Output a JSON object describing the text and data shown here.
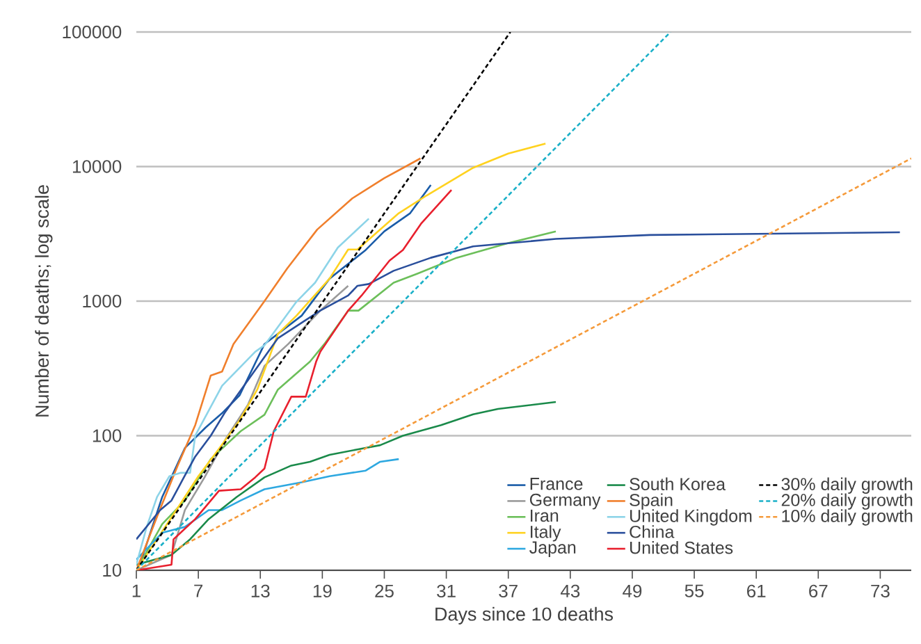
{
  "chart_data": {
    "type": "line",
    "xlabel": "Days since 10 deaths",
    "ylabel": "Number of deaths; log scale",
    "xlim": [
      1,
      76
    ],
    "ylim": [
      10,
      100000
    ],
    "log": "y",
    "grid": "y",
    "legend": "bottom right",
    "xticks": [
      1,
      7,
      13,
      19,
      25,
      31,
      37,
      43,
      49,
      55,
      61,
      67,
      73
    ],
    "yticks": [
      10,
      100,
      1000,
      10000,
      100000
    ],
    "series": [
      {
        "name": "France",
        "color": "#1a5ca8",
        "x": [
          1,
          1.5,
          3.5,
          5.7,
          7.7,
          9.3,
          11,
          13.4,
          17,
          19.7,
          23.2,
          25,
          27.5,
          29.5
        ],
        "values": [
          10,
          12,
          35,
          81,
          115,
          147,
          200,
          480,
          780,
          1470,
          2400,
          3300,
          4500,
          7300
        ]
      },
      {
        "name": "Germany",
        "color": "#9a9a9a",
        "x": [
          1,
          4.4,
          5.7,
          7.6,
          9.7,
          11.8,
          13.4,
          15.7,
          18.8,
          21.5
        ],
        "values": [
          10,
          13,
          28,
          49,
          96,
          170,
          330,
          480,
          850,
          1300
        ]
      },
      {
        "name": "Iran",
        "color": "#6cbf5a",
        "x": [
          1,
          3.5,
          5.7,
          8.2,
          11.1,
          13.4,
          14.7,
          17.8,
          19.2,
          21.5,
          22.5,
          25.9,
          28.2,
          32,
          37,
          41.6
        ],
        "values": [
          10,
          22,
          33,
          67,
          108,
          143,
          220,
          355,
          480,
          850,
          850,
          1370,
          1600,
          2100,
          2700,
          3300
        ]
      },
      {
        "name": "Italy",
        "color": "#ffd21f",
        "x": [
          1,
          3,
          5,
          7,
          9,
          11,
          12.7,
          14.7,
          16.5,
          19.7,
          21.5,
          22.4,
          26.4,
          29.1,
          33.6,
          37,
          40.6
        ],
        "values": [
          10,
          17,
          29,
          50,
          80,
          130,
          220,
          570,
          780,
          1470,
          2420,
          2420,
          4500,
          6100,
          9800,
          12500,
          14800
        ]
      },
      {
        "name": "Japan",
        "color": "#2ea8e0",
        "x": [
          1,
          3.5,
          5.7,
          8,
          9.3,
          11.1,
          13.4,
          17,
          19.7,
          23.2,
          24.6,
          26.4
        ],
        "values": [
          12,
          19,
          21,
          28,
          28,
          33,
          40,
          45,
          50,
          55,
          64,
          67
        ]
      },
      {
        "name": "South Korea",
        "color": "#1a8a4a",
        "x": [
          1,
          4.4,
          6.2,
          8,
          10.7,
          13.4,
          16,
          17.8,
          19.7,
          22.4,
          24.6,
          26.8,
          30.5,
          33.6,
          36,
          41.6
        ],
        "values": [
          11,
          13,
          17,
          24,
          35,
          49,
          60,
          64,
          72,
          79,
          85,
          100,
          120,
          144,
          158,
          178
        ]
      },
      {
        "name": "Spain",
        "color": "#f07f2c",
        "x": [
          1,
          3,
          5,
          6.7,
          8.2,
          9.3,
          10.4,
          13.4,
          15.6,
          18.5,
          21.9,
          25,
          28.5
        ],
        "values": [
          10,
          25,
          60,
          120,
          280,
          300,
          480,
          1000,
          1750,
          3400,
          5800,
          8200,
          11500
        ]
      },
      {
        "name": "United Kingdom",
        "color": "#8dd4e8",
        "x": [
          1,
          2,
          3,
          4.2,
          5.3,
          6.2,
          6.7,
          9.3,
          12.5,
          13.4,
          16.5,
          18.3,
          20.5,
          23.5
        ],
        "values": [
          11,
          21,
          35,
          50,
          53,
          53,
          100,
          235,
          420,
          470,
          990,
          1370,
          2500,
          4100
        ]
      },
      {
        "name": "China",
        "color": "#2a4f9c",
        "x": [
          1,
          3.3,
          4.4,
          5.6,
          6.7,
          8.2,
          9.6,
          14.7,
          18.8,
          21.5,
          22.4,
          23.5,
          25.9,
          29.5,
          33.6,
          41.6,
          50.7,
          59.5,
          74.9
        ],
        "values": [
          17,
          28,
          33,
          49,
          70,
          100,
          150,
          530,
          850,
          1100,
          1300,
          1340,
          1680,
          2100,
          2550,
          2900,
          3100,
          3150,
          3250
        ]
      },
      {
        "name": "United States",
        "color": "#e8202e",
        "x": [
          1,
          4.4,
          4.6,
          6.7,
          9,
          11.1,
          12.5,
          13.4,
          14.3,
          16,
          17.4,
          18.4,
          18.8,
          21.5,
          22.8,
          25.5,
          26.8,
          28.6,
          31.5
        ],
        "values": [
          10,
          11,
          17,
          24,
          39,
          40,
          49,
          57,
          108,
          195,
          195,
          355,
          420,
          850,
          1100,
          2000,
          2400,
          3800,
          6700
        ]
      },
      {
        "name": "30% daily growth",
        "color": "#000000",
        "line_style": "dashed",
        "x": [
          1,
          37.2
        ],
        "values": [
          10,
          100000
        ]
      },
      {
        "name": "20% daily growth",
        "color": "#1ab0c8",
        "line_style": "dashed",
        "x": [
          1,
          52.7
        ],
        "values": [
          10,
          100000
        ]
      },
      {
        "name": "10% daily growth",
        "color": "#f59a3a",
        "line_style": "dashed",
        "x": [
          1,
          76
        ],
        "values": [
          10,
          11500
        ]
      }
    ]
  }
}
